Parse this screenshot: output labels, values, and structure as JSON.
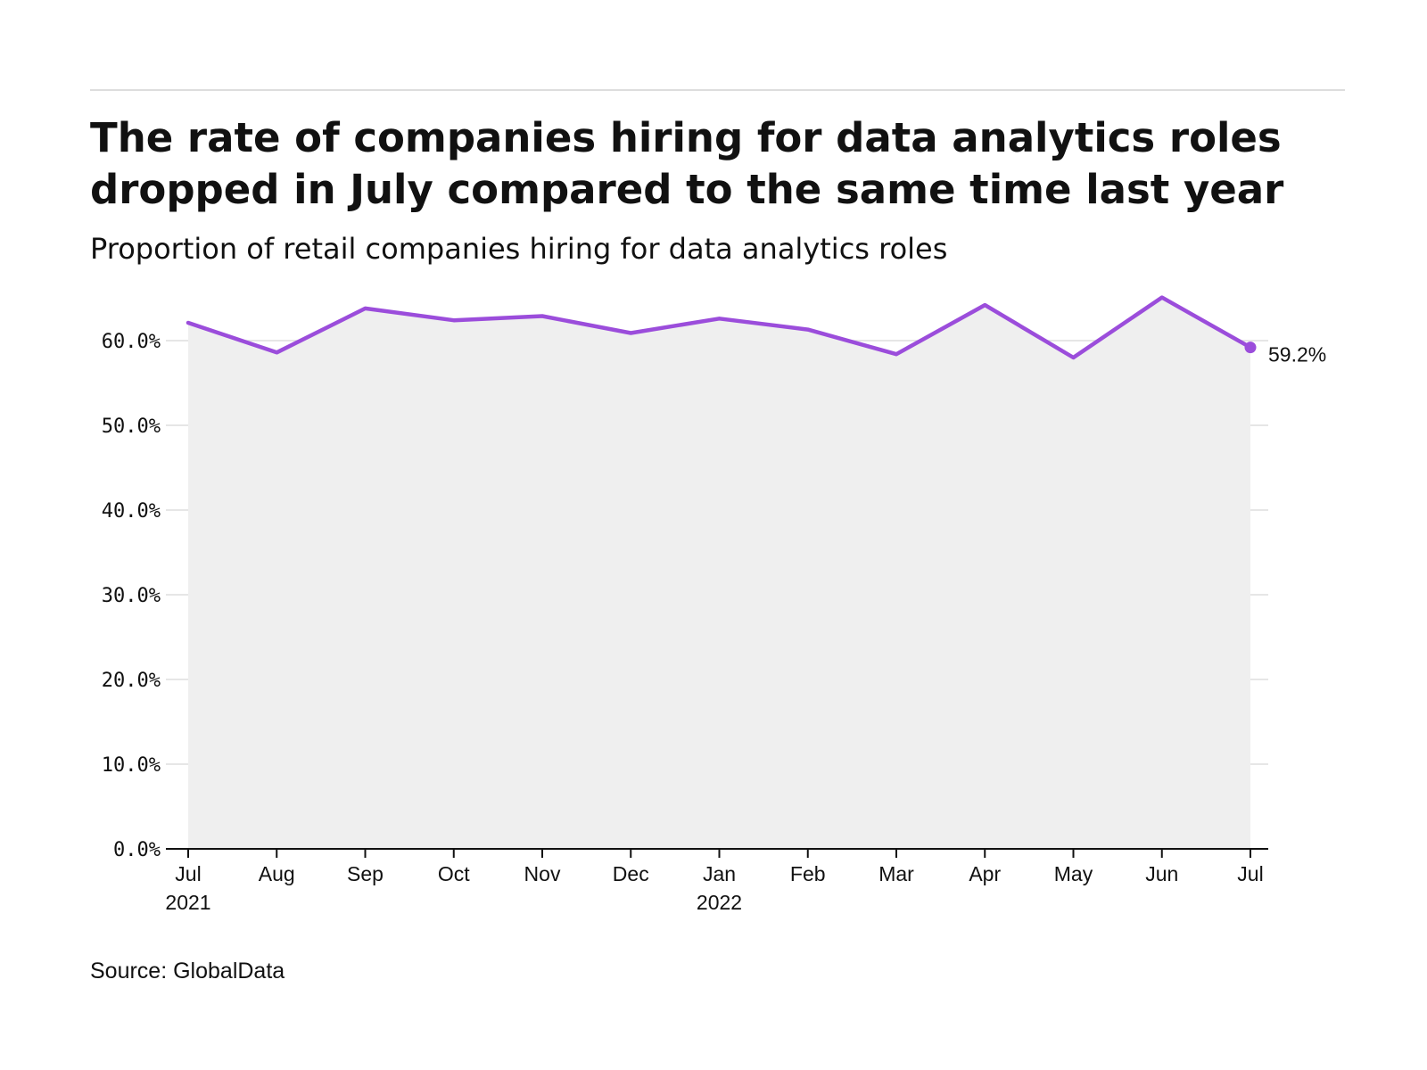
{
  "title_lines": [
    "The rate of companies hiring for data analytics roles",
    "dropped in July compared to the same time last year"
  ],
  "subtitle": "Proportion of retail companies hiring for data analytics roles",
  "source": "Source: GlobalData",
  "colors": {
    "line": "#9b4ddb",
    "area": "#efefef",
    "grid": "#dedede",
    "axis": "#111111"
  },
  "chart_data": {
    "type": "line",
    "x": [
      "2021-07",
      "2021-08",
      "2021-09",
      "2021-10",
      "2021-11",
      "2021-12",
      "2022-01",
      "2022-02",
      "2022-03",
      "2022-04",
      "2022-05",
      "2022-06",
      "2022-07"
    ],
    "x_tick_labels": [
      [
        "Jul",
        "2021"
      ],
      [
        "Aug"
      ],
      [
        "Sep"
      ],
      [
        "Oct"
      ],
      [
        "Nov"
      ],
      [
        "Dec"
      ],
      [
        "Jan",
        "2022"
      ],
      [
        "Feb"
      ],
      [
        "Mar"
      ],
      [
        "Apr"
      ],
      [
        "May"
      ],
      [
        "Jun"
      ],
      [
        "Jul"
      ]
    ],
    "series": [
      {
        "values": [
          62.1,
          58.6,
          63.8,
          62.4,
          62.9,
          60.9,
          62.6,
          61.3,
          58.4,
          64.2,
          58.0,
          65.1,
          59.2
        ]
      }
    ],
    "ylim": [
      0,
      60
    ],
    "y_ticks": [
      0,
      10,
      20,
      30,
      40,
      50,
      60
    ],
    "y_tick_labels": [
      "0.0%",
      "10.0%",
      "20.0%",
      "30.0%",
      "40.0%",
      "50.0%",
      "60.0%"
    ],
    "end_label": "59.2%",
    "grid": true,
    "area_fill": true
  }
}
